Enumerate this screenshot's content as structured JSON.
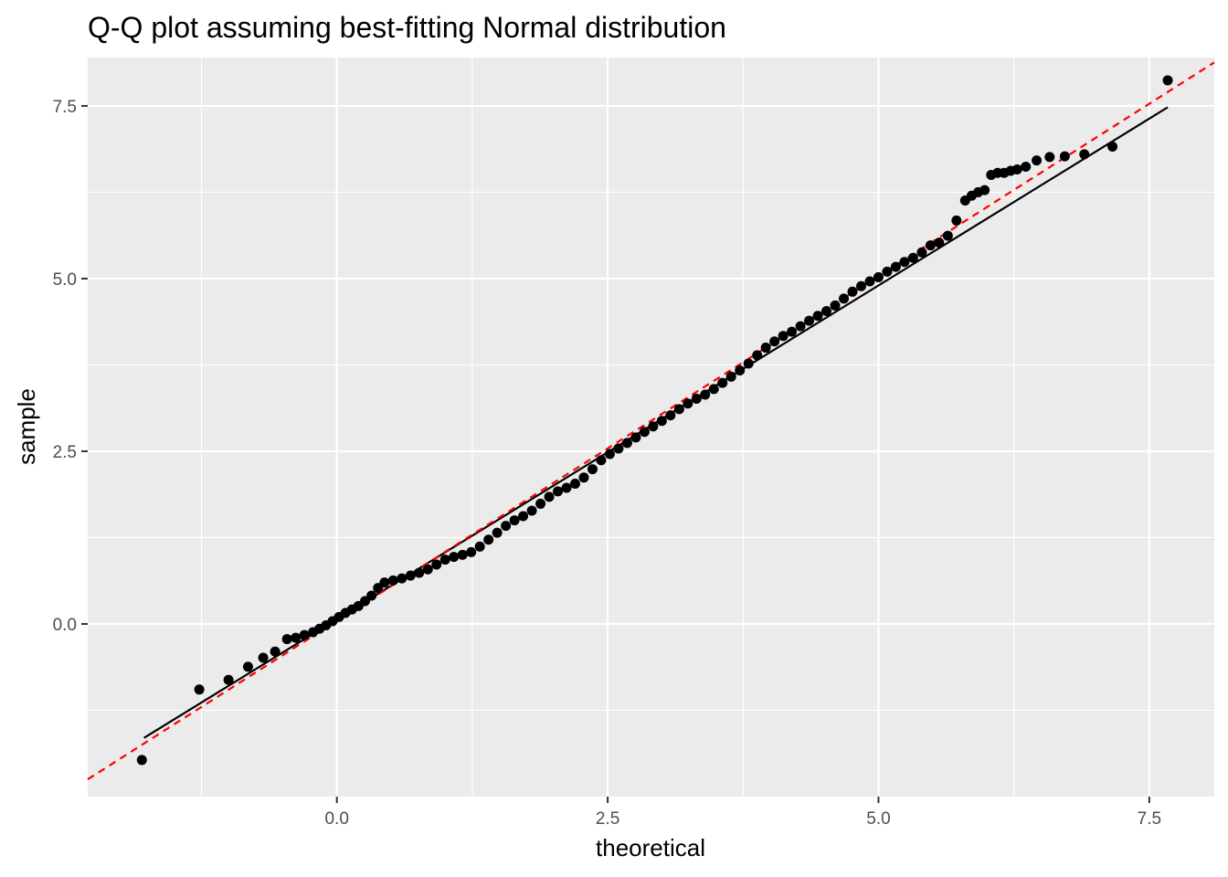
{
  "chart_data": {
    "type": "scatter",
    "title": "Q-Q plot assuming best-fitting Normal distribution",
    "xlabel": "theoretical",
    "ylabel": "sample",
    "xlim": [
      -2.3,
      8.1
    ],
    "ylim": [
      -2.5,
      8.2
    ],
    "x_ticks": [
      0.0,
      2.5,
      5.0,
      7.5
    ],
    "y_ticks": [
      0.0,
      2.5,
      5.0,
      7.5
    ],
    "x_tick_labels": [
      "0.0",
      "2.5",
      "5.0",
      "7.5"
    ],
    "y_tick_labels": [
      "0.0",
      "2.5",
      "5.0",
      "7.5"
    ],
    "grid": true,
    "panel_background": "#ebebeb",
    "point_color": "#000000",
    "points": [
      [
        -1.8,
        -1.97
      ],
      [
        -1.27,
        -0.95
      ],
      [
        -1.0,
        -0.81
      ],
      [
        -0.82,
        -0.62
      ],
      [
        -0.68,
        -0.49
      ],
      [
        -0.57,
        -0.4
      ],
      [
        -0.46,
        -0.22
      ],
      [
        -0.38,
        -0.2
      ],
      [
        -0.3,
        -0.16
      ],
      [
        -0.22,
        -0.12
      ],
      [
        -0.16,
        -0.07
      ],
      [
        -0.1,
        -0.02
      ],
      [
        -0.04,
        0.04
      ],
      [
        0.02,
        0.1
      ],
      [
        0.08,
        0.16
      ],
      [
        0.14,
        0.21
      ],
      [
        0.2,
        0.26
      ],
      [
        0.26,
        0.33
      ],
      [
        0.32,
        0.41
      ],
      [
        0.38,
        0.52
      ],
      [
        0.44,
        0.6
      ],
      [
        0.52,
        0.63
      ],
      [
        0.6,
        0.66
      ],
      [
        0.68,
        0.7
      ],
      [
        0.76,
        0.74
      ],
      [
        0.84,
        0.79
      ],
      [
        0.92,
        0.86
      ],
      [
        1.0,
        0.93
      ],
      [
        1.08,
        0.97
      ],
      [
        1.16,
        1.0
      ],
      [
        1.24,
        1.04
      ],
      [
        1.32,
        1.12
      ],
      [
        1.4,
        1.22
      ],
      [
        1.48,
        1.32
      ],
      [
        1.56,
        1.42
      ],
      [
        1.64,
        1.5
      ],
      [
        1.72,
        1.56
      ],
      [
        1.8,
        1.64
      ],
      [
        1.88,
        1.74
      ],
      [
        1.96,
        1.84
      ],
      [
        2.04,
        1.92
      ],
      [
        2.12,
        1.97
      ],
      [
        2.2,
        2.03
      ],
      [
        2.28,
        2.12
      ],
      [
        2.36,
        2.24
      ],
      [
        2.44,
        2.37
      ],
      [
        2.52,
        2.46
      ],
      [
        2.6,
        2.54
      ],
      [
        2.68,
        2.62
      ],
      [
        2.76,
        2.7
      ],
      [
        2.84,
        2.78
      ],
      [
        2.92,
        2.86
      ],
      [
        3.0,
        2.94
      ],
      [
        3.08,
        3.02
      ],
      [
        3.16,
        3.11
      ],
      [
        3.24,
        3.19
      ],
      [
        3.32,
        3.26
      ],
      [
        3.4,
        3.32
      ],
      [
        3.48,
        3.4
      ],
      [
        3.56,
        3.49
      ],
      [
        3.64,
        3.58
      ],
      [
        3.72,
        3.67
      ],
      [
        3.8,
        3.77
      ],
      [
        3.88,
        3.89
      ],
      [
        3.96,
        4.0
      ],
      [
        4.04,
        4.09
      ],
      [
        4.12,
        4.17
      ],
      [
        4.2,
        4.23
      ],
      [
        4.28,
        4.31
      ],
      [
        4.36,
        4.39
      ],
      [
        4.44,
        4.46
      ],
      [
        4.52,
        4.53
      ],
      [
        4.6,
        4.61
      ],
      [
        4.68,
        4.71
      ],
      [
        4.76,
        4.81
      ],
      [
        4.84,
        4.89
      ],
      [
        4.92,
        4.96
      ],
      [
        5.0,
        5.02
      ],
      [
        5.08,
        5.1
      ],
      [
        5.16,
        5.17
      ],
      [
        5.24,
        5.24
      ],
      [
        5.32,
        5.3
      ],
      [
        5.4,
        5.38
      ],
      [
        5.48,
        5.48
      ],
      [
        5.56,
        5.52
      ],
      [
        5.64,
        5.62
      ],
      [
        5.72,
        5.84
      ],
      [
        5.8,
        6.13
      ],
      [
        5.86,
        6.2
      ],
      [
        5.92,
        6.25
      ],
      [
        5.98,
        6.28
      ],
      [
        6.04,
        6.5
      ],
      [
        6.1,
        6.53
      ],
      [
        6.16,
        6.53
      ],
      [
        6.22,
        6.56
      ],
      [
        6.28,
        6.58
      ],
      [
        6.36,
        6.62
      ],
      [
        6.46,
        6.71
      ],
      [
        6.58,
        6.76
      ],
      [
        6.72,
        6.77
      ],
      [
        6.9,
        6.8
      ],
      [
        7.16,
        6.91
      ],
      [
        7.67,
        7.87
      ]
    ],
    "lines": [
      {
        "style": "solid",
        "color": "#000000",
        "x": [
          -1.78,
          7.67
        ],
        "y": [
          -1.65,
          7.48
        ]
      },
      {
        "style": "dashed",
        "color": "#ff0000",
        "x": [
          -2.3,
          8.1
        ],
        "y": [
          -2.25,
          8.13
        ]
      }
    ]
  }
}
